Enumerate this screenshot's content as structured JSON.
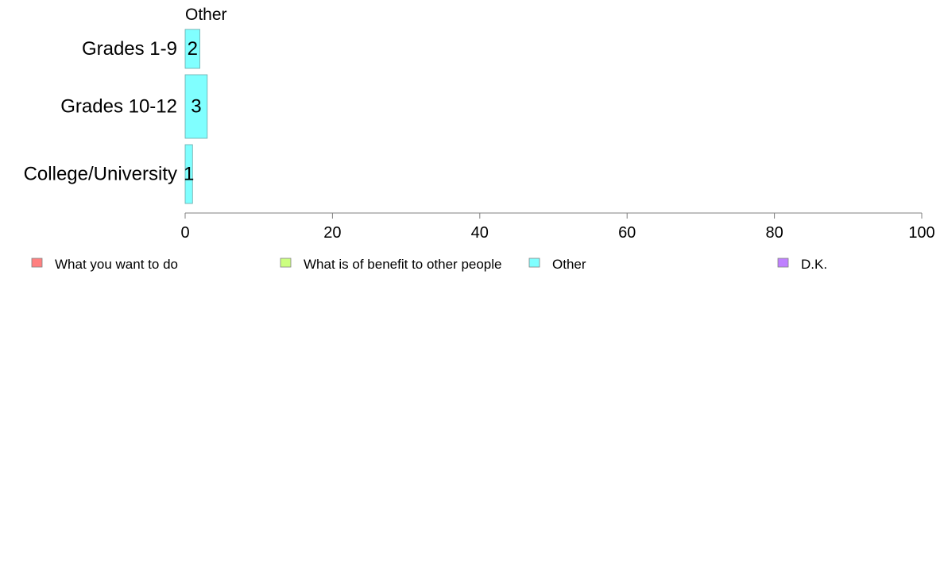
{
  "chart_data": {
    "type": "bar",
    "orientation": "horizontal",
    "title": "Other",
    "categories": [
      "Grades 1-9",
      "Grades 10-12",
      "College/University"
    ],
    "series": [
      {
        "name": "Other",
        "color": "#80ffff",
        "values": [
          2,
          3,
          1
        ],
        "labels": [
          "2",
          "3",
          "1"
        ]
      }
    ],
    "xlim": [
      0,
      100
    ],
    "xticks": [
      0,
      20,
      40,
      60,
      80,
      100
    ],
    "xtick_labels": [
      "0",
      "20",
      "40",
      "60",
      "80",
      "100"
    ],
    "grid": false,
    "legend": {
      "position": "bottom",
      "items": [
        {
          "label": "What you want to do",
          "color": "#ff8080"
        },
        {
          "label": "What is of benefit to other people",
          "color": "#ccff80"
        },
        {
          "label": "Other",
          "color": "#80ffff"
        },
        {
          "label": "D.K.",
          "color": "#bf80ff"
        }
      ]
    }
  }
}
